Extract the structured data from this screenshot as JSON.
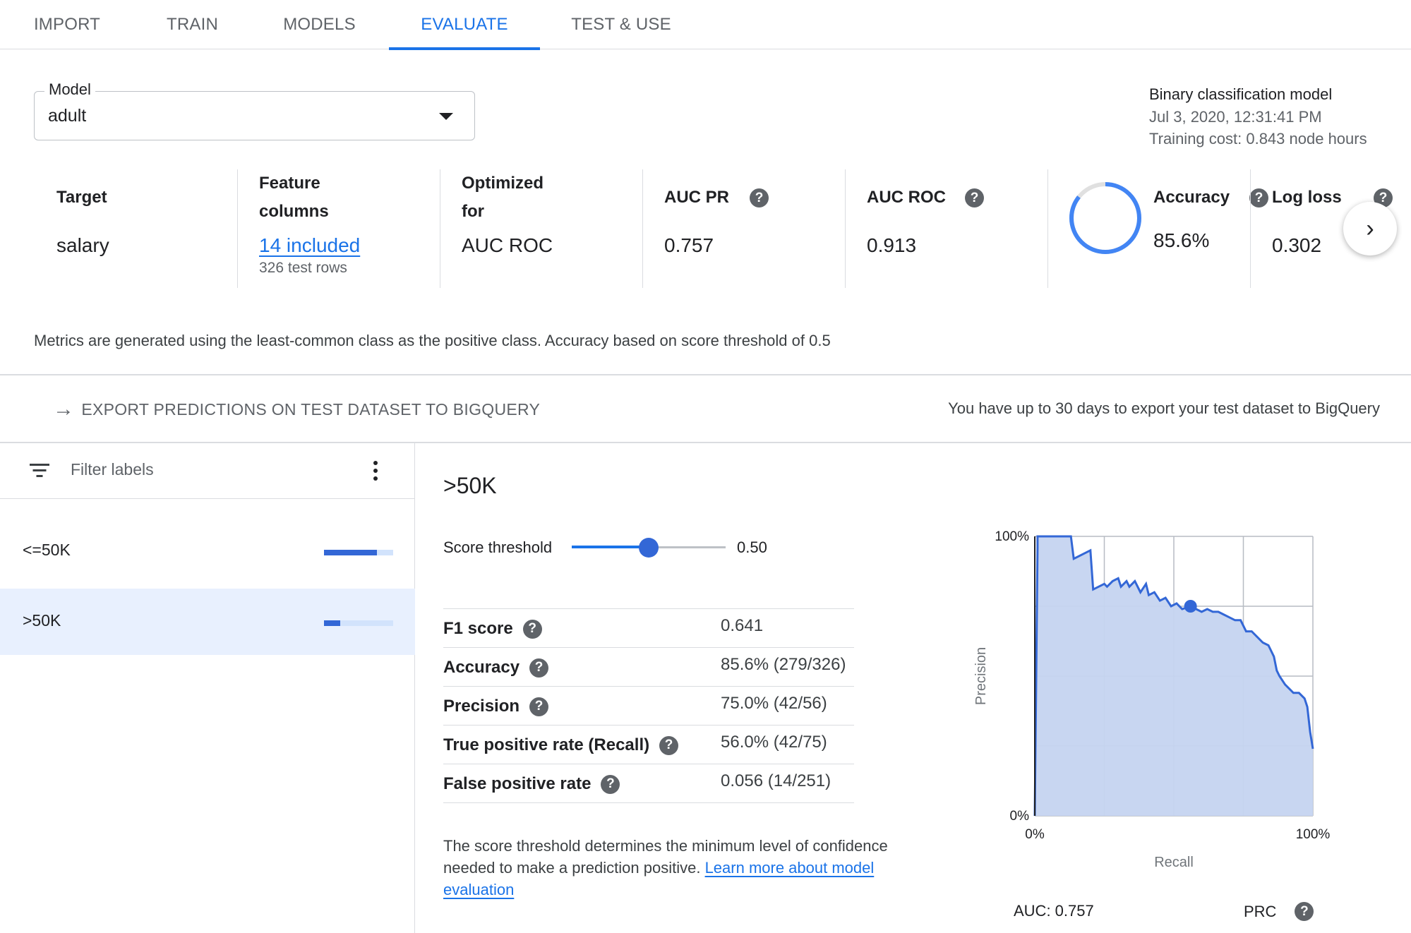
{
  "tabs": [
    {
      "label": "IMPORT",
      "active": false
    },
    {
      "label": "TRAIN",
      "active": false
    },
    {
      "label": "MODELS",
      "active": false
    },
    {
      "label": "EVALUATE",
      "active": true
    },
    {
      "label": "TEST & USE",
      "active": false
    }
  ],
  "model_select": {
    "label": "Model",
    "value": "adult"
  },
  "model_info": {
    "type": "Binary classification model",
    "date": "Jul 3, 2020, 12:31:41 PM",
    "cost": "Training cost: 0.843 node hours"
  },
  "summary": {
    "target": {
      "label": "Target",
      "value": "salary"
    },
    "features": {
      "label_line1": "Feature",
      "label_line2": "columns",
      "link": "14 included",
      "sub": "326 test rows"
    },
    "optimized": {
      "label_line1": "Optimized",
      "label_line2": "for",
      "value": "AUC ROC"
    },
    "auc_pr": {
      "label": "AUC PR",
      "value": "0.757"
    },
    "auc_roc": {
      "label": "AUC ROC",
      "value": "0.913"
    },
    "accuracy": {
      "label": "Accuracy",
      "value": "85.6%",
      "fraction": 0.856
    },
    "log_loss": {
      "label": "Log loss",
      "value": "0.302"
    }
  },
  "note": "Metrics are generated using the least-common class as the positive class. Accuracy based on score threshold of 0.5",
  "export": {
    "button": "EXPORT PREDICTIONS ON TEST DATASET TO BIGQUERY",
    "note": "You have up to 30 days to export your test dataset to BigQuery"
  },
  "labels_panel": {
    "filter_placeholder": "Filter labels",
    "items": [
      {
        "name": "<=50K",
        "proportion": 0.77,
        "selected": false
      },
      {
        "name": ">50K",
        "proportion": 0.23,
        "selected": true
      }
    ]
  },
  "detail": {
    "title": ">50K",
    "threshold_label": "Score threshold",
    "threshold_value": "0.50",
    "threshold_fraction": 0.5,
    "metrics": [
      {
        "label": "F1 score",
        "value": "0.641"
      },
      {
        "label": "Accuracy",
        "value": "85.6% (279/326)"
      },
      {
        "label": "Precision",
        "value": "75.0% (42/56)"
      },
      {
        "label": "True positive rate (Recall)",
        "value": "56.0% (42/75)"
      },
      {
        "label": "False positive rate",
        "value": "0.056 (14/251)"
      }
    ],
    "explain_text": "The score threshold determines the minimum level of confidence needed to make a prediction positive. ",
    "explain_link": "Learn more about model evaluation"
  },
  "chart_data": {
    "type": "area",
    "xlabel": "Recall",
    "ylabel": "Precision",
    "x_tick_labels": [
      "0%",
      "100%"
    ],
    "y_tick_labels": [
      "0%",
      "100%"
    ],
    "xlim": [
      0,
      1
    ],
    "ylim": [
      0,
      1
    ],
    "grid": true,
    "x": [
      0,
      0.01,
      0.01,
      0.13,
      0.14,
      0.2,
      0.21,
      0.25,
      0.26,
      0.28,
      0.3,
      0.31,
      0.33,
      0.34,
      0.36,
      0.38,
      0.4,
      0.41,
      0.43,
      0.45,
      0.47,
      0.49,
      0.51,
      0.53,
      0.56,
      0.58,
      0.6,
      0.62,
      0.64,
      0.66,
      0.68,
      0.7,
      0.72,
      0.74,
      0.76,
      0.78,
      0.8,
      0.82,
      0.84,
      0.86,
      0.87,
      0.88,
      0.9,
      0.92,
      0.93,
      0.95,
      0.97,
      0.98,
      0.99,
      1.0
    ],
    "y": [
      0.0,
      0.96,
      1.0,
      1.0,
      0.92,
      0.95,
      0.81,
      0.83,
      0.82,
      0.84,
      0.85,
      0.82,
      0.84,
      0.82,
      0.84,
      0.8,
      0.83,
      0.79,
      0.8,
      0.77,
      0.78,
      0.75,
      0.76,
      0.74,
      0.75,
      0.74,
      0.73,
      0.74,
      0.73,
      0.73,
      0.72,
      0.71,
      0.7,
      0.7,
      0.66,
      0.66,
      0.64,
      0.62,
      0.61,
      0.57,
      0.52,
      0.5,
      0.47,
      0.45,
      0.44,
      0.44,
      0.42,
      0.39,
      0.3,
      0.24
    ],
    "threshold_point": {
      "x": 0.56,
      "y": 0.75
    },
    "auc_label": "AUC: 0.757",
    "curve_name": "PRC",
    "colors": {
      "line": "#3367d6",
      "fill": "#c5d4f0",
      "grid": "#b7bcc3"
    }
  }
}
